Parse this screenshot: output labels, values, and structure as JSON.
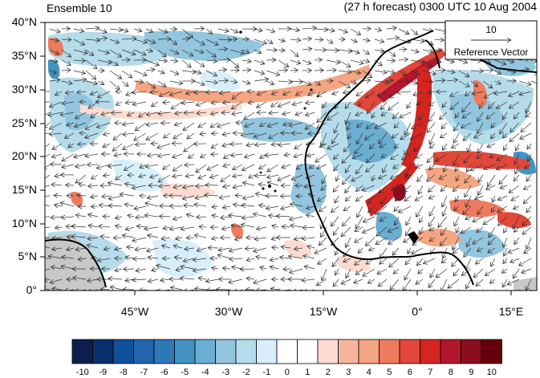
{
  "figure": {
    "title_left": "Ensemble 10",
    "title_right": "(27 h forecast) 0300 UTC 10 Aug 2004"
  },
  "map": {
    "lat_labels": [
      "0°",
      "5°N",
      "10°N",
      "15°N",
      "20°N",
      "25°N",
      "30°N",
      "35°N",
      "40°N"
    ],
    "lon_labels": [
      "45°W",
      "30°W",
      "15°W",
      "0°",
      "15°E"
    ],
    "lat_range": [
      0,
      40
    ],
    "lon_range": [
      -59,
      19
    ],
    "land_color": "#c8c8c8",
    "reference_vector": {
      "value": "10",
      "label": "Reference Vector"
    }
  },
  "colorbar": {
    "labels": [
      "-10",
      "-9",
      "-8",
      "-7",
      "-6",
      "-5",
      "-4",
      "-3",
      "-2",
      "-1",
      "0",
      "1",
      "2",
      "3",
      "4",
      "5",
      "6",
      "7",
      "8",
      "9",
      "10"
    ],
    "colors": [
      "#0b1e4e",
      "#08306b",
      "#10509b",
      "#2166ac",
      "#2f78b8",
      "#4393c3",
      "#6aaed2",
      "#92c5de",
      "#b5dcea",
      "#d6effa",
      "#ffffff",
      "#ffffff",
      "#fddbd0",
      "#f6b59b",
      "#f4a582",
      "#ef7b5f",
      "#e2473a",
      "#d6251f",
      "#b2182b",
      "#8b0e1f",
      "#67000d"
    ]
  }
}
